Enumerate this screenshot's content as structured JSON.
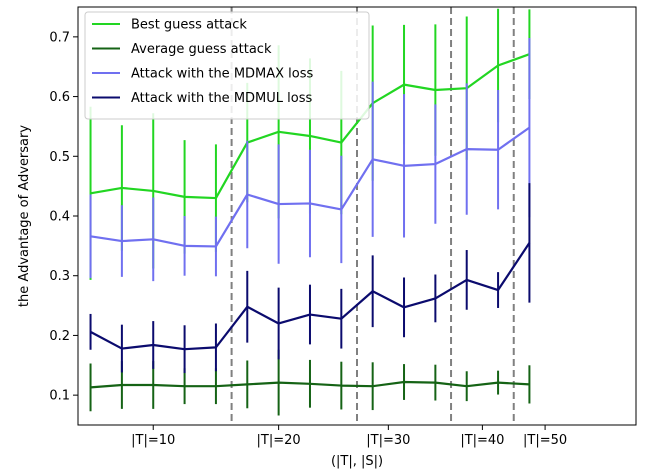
{
  "chart_data": {
    "type": "line",
    "xlabel": "(|T|, |S|)",
    "ylabel": "the Advantage of Adversary",
    "ylim": [
      0.05,
      0.75
    ],
    "yticks": [
      0.1,
      0.2,
      0.3,
      0.4,
      0.5,
      0.6,
      0.7
    ],
    "x": [
      1,
      2,
      3,
      4,
      5,
      6,
      7,
      8,
      9,
      10,
      11,
      12,
      13,
      14,
      15,
      16,
      17,
      18
    ],
    "xlim": [
      0.6,
      18.4
    ],
    "group_ticks": [
      {
        "label": "|T|=10",
        "x": 3.0
      },
      {
        "label": "|T|=20",
        "x": 7.0
      },
      {
        "label": "|T|=30",
        "x": 10.5
      },
      {
        "label": "|T|=40",
        "x": 13.5
      },
      {
        "label": "|T|=50",
        "x": 15.5
      }
    ],
    "separators": [
      5.5,
      9.5,
      12.5,
      14.5
    ],
    "legend_position": "top-left",
    "grid": false,
    "series": [
      {
        "name": "Best guess attack",
        "color": "#22d622",
        "values": [
          0.438,
          0.447,
          0.442,
          0.432,
          0.43,
          0.523,
          0.541,
          0.534,
          0.523,
          0.589,
          0.62,
          0.611,
          0.614,
          0.652,
          0.671,
          null,
          null,
          null
        ],
        "err": [
          0.145,
          0.105,
          0.13,
          0.095,
          0.09,
          0.1,
          0.145,
          0.13,
          0.12,
          0.13,
          0.1,
          0.11,
          0.12,
          0.095,
          0.075,
          null,
          null,
          null
        ]
      },
      {
        "name": "Average guess attack",
        "color": "#156315",
        "values": [
          0.113,
          0.117,
          0.117,
          0.115,
          0.115,
          0.118,
          0.121,
          0.119,
          0.116,
          0.115,
          0.122,
          0.121,
          0.115,
          0.121,
          0.118,
          null,
          null,
          null
        ],
        "err": [
          0.04,
          0.04,
          0.04,
          0.03,
          0.03,
          0.04,
          0.055,
          0.04,
          0.04,
          0.04,
          0.03,
          0.03,
          0.025,
          0.02,
          0.032,
          null,
          null,
          null
        ]
      },
      {
        "name": "Attack with the MDMAX loss",
        "color": "#7070f0",
        "values": [
          0.366,
          0.358,
          0.361,
          0.35,
          0.349,
          0.436,
          0.42,
          0.421,
          0.411,
          0.495,
          0.484,
          0.487,
          0.512,
          0.511,
          0.548,
          null,
          null,
          null
        ],
        "err": [
          0.07,
          0.06,
          0.07,
          0.05,
          0.05,
          0.09,
          0.1,
          0.09,
          0.09,
          0.13,
          0.12,
          0.1,
          0.11,
          0.1,
          0.15,
          null,
          null,
          null
        ]
      },
      {
        "name": "Attack with the MDMUL loss",
        "color": "#0b0b6e",
        "values": [
          0.206,
          0.178,
          0.184,
          0.177,
          0.18,
          0.248,
          0.22,
          0.235,
          0.228,
          0.274,
          0.247,
          0.262,
          0.293,
          0.276,
          0.355,
          null,
          null,
          null
        ],
        "err": [
          0.03,
          0.04,
          0.04,
          0.04,
          0.04,
          0.06,
          0.06,
          0.05,
          0.05,
          0.06,
          0.05,
          0.04,
          0.05,
          0.03,
          0.1,
          null,
          null,
          null
        ]
      }
    ]
  }
}
